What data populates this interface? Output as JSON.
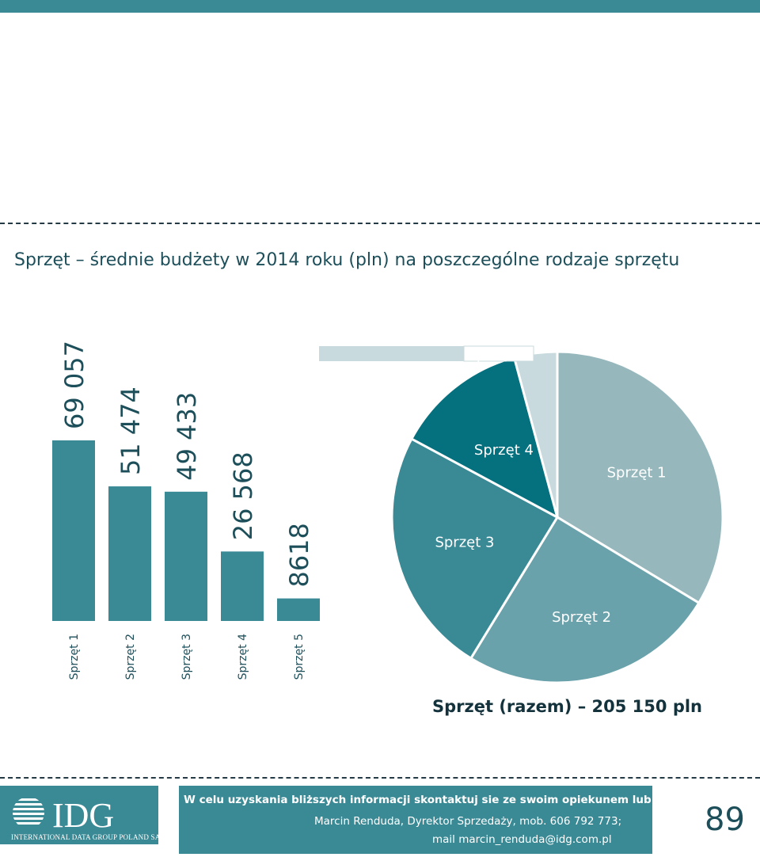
{
  "title": "Sprzęt – średnie budżety w 2014 roku (pln) na poszczególne rodzaje sprzętu",
  "total": "Sprzęt (razem) – 205 150 pln",
  "chart_data": [
    {
      "type": "bar",
      "categories": [
        "Sprzęt 1",
        "Sprzęt 2",
        "Sprzęt 3",
        "Sprzęt 4",
        "Sprzęt 5"
      ],
      "values": [
        69057,
        51474,
        49433,
        26568,
        8618
      ],
      "value_labels": [
        "69 057",
        "51 474",
        "49 433",
        "26 568",
        "8618"
      ],
      "color": "#3a8a96"
    },
    {
      "type": "pie",
      "labels": [
        "Sprzęt 1",
        "Sprzęt 2",
        "Sprzęt 3",
        "Sprzęt 4",
        "Sprzęt 5"
      ],
      "values": [
        69057,
        51474,
        49433,
        26568,
        8618
      ],
      "colors": [
        "#96b8bd",
        "#6aa2ab",
        "#3a8a96",
        "#05707e",
        "#c8dade"
      ]
    }
  ],
  "footer": {
    "logo_text": "IDG",
    "logo_subtitle": "INTERNATIONAL DATA GROUP POLAND SA",
    "contact_heading": "W celu uzyskania bliższych informacji skontaktuj sie ze swoim opiekunem lub:",
    "contact_line1": "Marcin Renduda, Dyrektor Sprzedaży, mob. 606 792 773;",
    "contact_line2": "mail marcin_renduda@idg.com.pl"
  },
  "page_number": "89"
}
